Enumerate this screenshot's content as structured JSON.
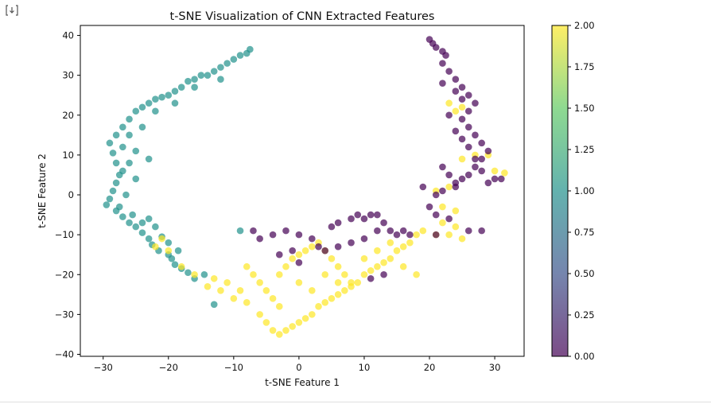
{
  "toolbar": {
    "output_icon": "output-toggle-icon"
  },
  "chart_data": {
    "type": "scatter",
    "title": "t-SNE Visualization of CNN Extracted Features",
    "xlabel": "t-SNE Feature 1",
    "ylabel": "t-SNE Feature 2",
    "xlim": [
      -33.5,
      34.5
    ],
    "ylim": [
      -40.5,
      42.5
    ],
    "xticks": [
      -30,
      -20,
      -10,
      0,
      10,
      20,
      30
    ],
    "xtick_labels": [
      "−30",
      "−20",
      "−10",
      "0",
      "10",
      "20",
      "30"
    ],
    "yticks": [
      -40,
      -30,
      -20,
      -10,
      0,
      10,
      20,
      30,
      40
    ],
    "ytick_labels": [
      "−40",
      "−30",
      "−20",
      "−10",
      "0",
      "10",
      "20",
      "30",
      "40"
    ],
    "grid": false,
    "colormap": "viridis",
    "colormap_stops": [
      "#440154",
      "#3b528b",
      "#21918c",
      "#5ec962",
      "#fde725"
    ],
    "marker_alpha": 0.7,
    "colorbar": {
      "range": [
        0,
        2
      ],
      "ticks": [
        0,
        0.25,
        0.5,
        0.75,
        1,
        1.25,
        1.5,
        1.75,
        2
      ],
      "tick_labels": [
        "0.00",
        "0.25",
        "0.50",
        "0.75",
        "1.00",
        "1.25",
        "1.50",
        "1.75",
        "2.00"
      ]
    },
    "series": [
      {
        "value": 1,
        "points": [
          [
            -7.5,
            36.5
          ],
          [
            -8,
            35.5
          ],
          [
            -9,
            35
          ],
          [
            -10,
            34
          ],
          [
            -11,
            33
          ],
          [
            -12,
            32
          ],
          [
            -13,
            31
          ],
          [
            -14,
            30
          ],
          [
            -15,
            30
          ],
          [
            -16,
            29
          ],
          [
            -17,
            28.5
          ],
          [
            -18,
            27
          ],
          [
            -19,
            26
          ],
          [
            -20,
            25
          ],
          [
            -21,
            24.5
          ],
          [
            -22,
            24
          ],
          [
            -23,
            23
          ],
          [
            -24,
            22
          ],
          [
            -25,
            21
          ],
          [
            -26,
            19
          ],
          [
            -27,
            17
          ],
          [
            -28,
            15
          ],
          [
            -29,
            13
          ],
          [
            -28.5,
            10.5
          ],
          [
            -28,
            8
          ],
          [
            -27.5,
            5
          ],
          [
            -28,
            3
          ],
          [
            -28.5,
            1
          ],
          [
            -29,
            -1
          ],
          [
            -29.5,
            -2.5
          ],
          [
            -28,
            -4
          ],
          [
            -27,
            -5.5
          ],
          [
            -26,
            -7
          ],
          [
            -25,
            -8
          ],
          [
            -24,
            -9.5
          ],
          [
            -23,
            -11
          ],
          [
            -22.5,
            -12.5
          ],
          [
            -21.5,
            -14
          ],
          [
            -20,
            -15
          ],
          [
            -19,
            -17.5
          ],
          [
            -18,
            -18.5
          ],
          [
            -17,
            -19.5
          ],
          [
            -16,
            -21
          ],
          [
            -14.5,
            -20
          ],
          [
            -13,
            -27.5
          ],
          [
            -9,
            -9
          ],
          [
            -12,
            29
          ],
          [
            -16,
            27
          ],
          [
            -19,
            23
          ],
          [
            -22,
            21
          ],
          [
            -24,
            17
          ],
          [
            -26,
            15
          ],
          [
            -27,
            12
          ],
          [
            -25,
            11
          ],
          [
            -23,
            9
          ],
          [
            -26,
            8
          ],
          [
            -27,
            6
          ],
          [
            -25,
            4
          ],
          [
            -26.5,
            0
          ],
          [
            -27.5,
            -3
          ],
          [
            -25.5,
            -5
          ],
          [
            -24,
            -7
          ],
          [
            -23,
            -6
          ],
          [
            -22,
            -8
          ],
          [
            -21,
            -10.5
          ],
          [
            -20,
            -12
          ],
          [
            -18.5,
            -14
          ],
          [
            -19.5,
            -16
          ]
        ]
      },
      {
        "value": 2,
        "points": [
          [
            -13,
            -21
          ],
          [
            -11,
            -22
          ],
          [
            -9,
            -24
          ],
          [
            -8,
            -27
          ],
          [
            -6,
            -30
          ],
          [
            -5,
            -32
          ],
          [
            -4,
            -34
          ],
          [
            -3,
            -35
          ],
          [
            -2,
            -34
          ],
          [
            -1,
            -33
          ],
          [
            0,
            -32
          ],
          [
            1,
            -31
          ],
          [
            2,
            -30
          ],
          [
            3,
            -28
          ],
          [
            4,
            -27
          ],
          [
            5,
            -26
          ],
          [
            6,
            -25
          ],
          [
            7,
            -24
          ],
          [
            8,
            -23
          ],
          [
            9,
            -22
          ],
          [
            10,
            -20
          ],
          [
            11,
            -19
          ],
          [
            12,
            -18
          ],
          [
            13,
            -17
          ],
          [
            14,
            -16
          ],
          [
            15,
            -14
          ],
          [
            16,
            -13
          ],
          [
            17,
            -12
          ],
          [
            18,
            -10
          ],
          [
            19,
            -9
          ],
          [
            -3,
            -20
          ],
          [
            -2,
            -18
          ],
          [
            -1,
            -16
          ],
          [
            0,
            -15
          ],
          [
            1,
            -14
          ],
          [
            2,
            -13
          ],
          [
            3,
            -12
          ],
          [
            4,
            -14
          ],
          [
            5,
            -16
          ],
          [
            6,
            -18
          ],
          [
            7,
            -20
          ],
          [
            8,
            -22
          ],
          [
            -5,
            -24
          ],
          [
            -4,
            -26
          ],
          [
            -3,
            -28
          ],
          [
            -6,
            -22
          ],
          [
            -7,
            -20
          ],
          [
            -8,
            -18
          ],
          [
            -10,
            -26
          ],
          [
            -12,
            -24
          ],
          [
            -14,
            -23
          ],
          [
            -16,
            -20
          ],
          [
            -18,
            -18
          ],
          [
            -20,
            -14
          ],
          [
            -21,
            -11
          ],
          [
            -22,
            -13
          ],
          [
            0,
            -22
          ],
          [
            2,
            -24
          ],
          [
            4,
            -20
          ],
          [
            6,
            -22
          ],
          [
            10,
            -16
          ],
          [
            12,
            -14
          ],
          [
            14,
            -12
          ],
          [
            16,
            -18
          ],
          [
            18,
            -20
          ],
          [
            23,
            -10
          ],
          [
            24,
            -8
          ],
          [
            25,
            -11
          ],
          [
            22,
            -7
          ],
          [
            21,
            -10
          ],
          [
            22,
            -3
          ],
          [
            24,
            -4
          ],
          [
            21,
            1
          ],
          [
            23,
            2
          ],
          [
            25,
            9
          ],
          [
            27,
            10
          ],
          [
            29,
            10
          ],
          [
            30,
            6
          ],
          [
            31.5,
            5.5
          ],
          [
            24,
            21
          ],
          [
            25,
            22
          ],
          [
            23,
            23
          ]
        ]
      },
      {
        "value": 0,
        "points": [
          [
            20,
            39
          ],
          [
            20.5,
            38
          ],
          [
            21,
            37
          ],
          [
            22,
            36
          ],
          [
            22.5,
            35
          ],
          [
            22,
            33
          ],
          [
            23,
            31
          ],
          [
            24,
            29
          ],
          [
            25,
            27
          ],
          [
            26,
            25
          ],
          [
            27,
            23
          ],
          [
            26,
            21
          ],
          [
            25,
            19
          ],
          [
            26,
            17
          ],
          [
            27,
            15
          ],
          [
            28,
            13
          ],
          [
            29,
            11
          ],
          [
            28,
            9
          ],
          [
            27,
            7
          ],
          [
            26,
            5
          ],
          [
            25,
            4
          ],
          [
            24,
            2
          ],
          [
            22,
            1
          ],
          [
            21,
            0
          ],
          [
            19,
            2
          ],
          [
            20,
            -3
          ],
          [
            21,
            -5
          ],
          [
            23,
            -6
          ],
          [
            26,
            -9
          ],
          [
            28,
            -9
          ],
          [
            21,
            -10
          ],
          [
            22,
            28
          ],
          [
            24,
            26
          ],
          [
            25,
            24
          ],
          [
            23,
            20
          ],
          [
            24,
            16
          ],
          [
            25,
            14
          ],
          [
            26,
            12
          ],
          [
            27,
            9
          ],
          [
            28,
            6
          ],
          [
            29,
            3
          ],
          [
            30,
            4
          ],
          [
            31,
            4
          ],
          [
            24,
            3
          ],
          [
            23,
            5
          ],
          [
            22,
            7
          ],
          [
            -7,
            -9
          ],
          [
            -6,
            -11
          ],
          [
            -4,
            -10
          ],
          [
            -2,
            -9
          ],
          [
            0,
            -10
          ],
          [
            2,
            -11
          ],
          [
            3,
            -13
          ],
          [
            5,
            -8
          ],
          [
            6,
            -7
          ],
          [
            8,
            -6
          ],
          [
            9,
            -5
          ],
          [
            10,
            -6
          ],
          [
            11,
            -5
          ],
          [
            12,
            -5
          ],
          [
            13,
            -7
          ],
          [
            14,
            -9
          ],
          [
            15,
            -10
          ],
          [
            16,
            -9
          ],
          [
            17,
            -10
          ],
          [
            12,
            -9
          ],
          [
            10,
            -11
          ],
          [
            8,
            -12
          ],
          [
            6,
            -13
          ],
          [
            4,
            -14
          ],
          [
            -1,
            -14
          ],
          [
            -3,
            -15
          ],
          [
            0,
            -17
          ],
          [
            13,
            -20
          ],
          [
            11,
            -21
          ]
        ]
      }
    ]
  }
}
